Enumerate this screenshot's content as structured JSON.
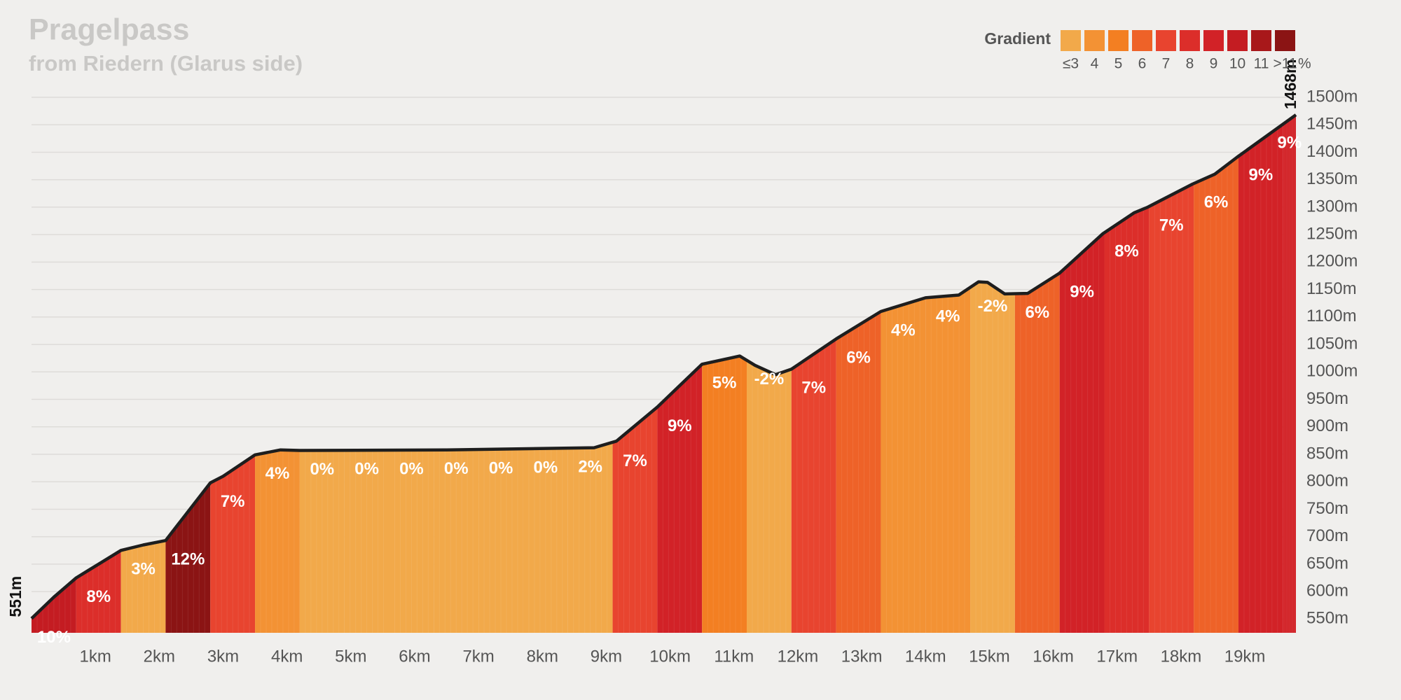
{
  "chart_data": {
    "type": "elevation-profile",
    "title": "Pragelpass",
    "subtitle": "from Riedern (Glarus side)",
    "legend": {
      "title": "Gradient",
      "unit": "%",
      "items": [
        {
          "label": "≤3",
          "color": "#f2a94a"
        },
        {
          "label": "4",
          "color": "#f39234"
        },
        {
          "label": "5",
          "color": "#f37f22"
        },
        {
          "label": "6",
          "color": "#ee6228"
        },
        {
          "label": "7",
          "color": "#e8442f"
        },
        {
          "label": "8",
          "color": "#dc2e2a"
        },
        {
          "label": "9",
          "color": "#d22227"
        },
        {
          "label": "10",
          "color": "#c41c22"
        },
        {
          "label": "11",
          "color": "#a8181a"
        },
        {
          "label": ">11",
          "color": "#8b1414"
        }
      ]
    },
    "x": [
      0,
      0.35,
      0.7,
      1.05,
      1.4,
      1.75,
      2.1,
      2.8,
      3.0,
      3.5,
      3.9,
      4.2,
      6.5,
      8.81,
      9.16,
      9.8,
      10.5,
      11.09,
      11.33,
      11.65,
      11.9,
      12.6,
      13.3,
      14,
      14.52,
      14.83,
      14.97,
      15.24,
      15.6,
      16.1,
      16.78,
      17.27,
      17.48,
      18.18,
      18.53,
      18.88,
      19.8
    ],
    "values": [
      551,
      590,
      625,
      650,
      675,
      685,
      693,
      798,
      810,
      849,
      858,
      857,
      858,
      862,
      874,
      936,
      1014,
      1029,
      1012,
      995,
      1005,
      1060,
      1110,
      1135,
      1140,
      1164,
      1163,
      1142,
      1143,
      1180,
      1252,
      1290,
      1300,
      1342,
      1360,
      1391,
      1468
    ],
    "start_label": "551m",
    "end_label": "1468m",
    "segments": {
      "bins": [
        0,
        0.7,
        1.4,
        2.1,
        2.8,
        3.5,
        4.2,
        4.9,
        5.6,
        6.3,
        7,
        7.7,
        8.4,
        9.1,
        9.8,
        10.5,
        11.2,
        11.9,
        12.6,
        13.3,
        14,
        14.7,
        15.4,
        16.1,
        16.8,
        17.5,
        18.2,
        18.9,
        19.6,
        19.8
      ],
      "values": [
        10,
        8,
        3,
        12,
        7,
        4,
        0,
        0,
        0,
        0,
        0,
        0,
        2,
        7,
        9,
        5,
        -2,
        7,
        6,
        4,
        4,
        -2,
        6,
        9,
        8,
        7,
        6,
        9,
        9
      ],
      "value_labels": [
        "10%",
        "8%",
        "3%",
        "12%",
        "7%",
        "4%",
        "0%",
        "0%",
        "0%",
        "0%",
        "0%",
        "0%",
        "2%",
        "7%",
        "9%",
        "5%",
        "-2%",
        "7%",
        "6%",
        "4%",
        "4%",
        "-2%",
        "6%",
        "9%",
        "8%",
        "7%",
        "6%",
        "9%",
        "9%"
      ],
      "colors": [
        "#c41c22",
        "#dc2e2a",
        "#f2a94a",
        "#8b1414",
        "#e8442f",
        "#f39234",
        "#f2a94a",
        "#f2a94a",
        "#f2a94a",
        "#f2a94a",
        "#f2a94a",
        "#f2a94a",
        "#f2a94a",
        "#e8442f",
        "#d22227",
        "#f37f22",
        "#f2a94a",
        "#e8442f",
        "#ee6228",
        "#f39234",
        "#f39234",
        "#f2a94a",
        "#ee6228",
        "#d22227",
        "#dc2e2a",
        "#e8442f",
        "#ee6228",
        "#d22227",
        "#d22227"
      ]
    },
    "xlim": [
      0,
      19.8
    ],
    "xticks": [
      {
        "value": 1,
        "label": "1km"
      },
      {
        "value": 2,
        "label": "2km"
      },
      {
        "value": 3,
        "label": "3km"
      },
      {
        "value": 4,
        "label": "4km"
      },
      {
        "value": 5,
        "label": "5km"
      },
      {
        "value": 6,
        "label": "6km"
      },
      {
        "value": 7,
        "label": "7km"
      },
      {
        "value": 8,
        "label": "8km"
      },
      {
        "value": 9,
        "label": "9km"
      },
      {
        "value": 10,
        "label": "10km"
      },
      {
        "value": 11,
        "label": "11km"
      },
      {
        "value": 12,
        "label": "12km"
      },
      {
        "value": 13,
        "label": "13km"
      },
      {
        "value": 14,
        "label": "14km"
      },
      {
        "value": 15,
        "label": "15km"
      },
      {
        "value": 16,
        "label": "16km"
      },
      {
        "value": 17,
        "label": "17km"
      },
      {
        "value": 18,
        "label": "18km"
      },
      {
        "value": 19,
        "label": "19km"
      }
    ],
    "ylim": [
      525,
      1500
    ],
    "yticks": [
      {
        "value": 550,
        "label": "550m"
      },
      {
        "value": 600,
        "label": "600m"
      },
      {
        "value": 650,
        "label": "650m"
      },
      {
        "value": 700,
        "label": "700m"
      },
      {
        "value": 750,
        "label": "750m"
      },
      {
        "value": 800,
        "label": "800m"
      },
      {
        "value": 850,
        "label": "850m"
      },
      {
        "value": 900,
        "label": "900m"
      },
      {
        "value": 950,
        "label": "950m"
      },
      {
        "value": 1000,
        "label": "1000m"
      },
      {
        "value": 1050,
        "label": "1050m"
      },
      {
        "value": 1100,
        "label": "1100m"
      },
      {
        "value": 1150,
        "label": "1150m"
      },
      {
        "value": 1200,
        "label": "1200m"
      },
      {
        "value": 1250,
        "label": "1250m"
      },
      {
        "value": 1300,
        "label": "1300m"
      },
      {
        "value": 1350,
        "label": "1350m"
      },
      {
        "value": 1400,
        "label": "1400m"
      },
      {
        "value": 1450,
        "label": "1450m"
      },
      {
        "value": 1500,
        "label": "1500m"
      }
    ],
    "grid": true,
    "line_color": "#1e1e1e"
  }
}
